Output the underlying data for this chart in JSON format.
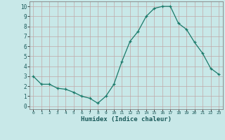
{
  "x": [
    0,
    1,
    2,
    3,
    4,
    5,
    6,
    7,
    8,
    9,
    10,
    11,
    12,
    13,
    14,
    15,
    16,
    17,
    18,
    19,
    20,
    21,
    22,
    23
  ],
  "y": [
    3.0,
    2.2,
    2.2,
    1.8,
    1.7,
    1.4,
    1.0,
    0.8,
    0.3,
    1.0,
    2.2,
    4.5,
    6.5,
    7.5,
    9.0,
    9.8,
    10.0,
    10.0,
    8.3,
    7.7,
    6.4,
    5.3,
    3.8,
    3.2
  ],
  "xlabel": "Humidex (Indice chaleur)",
  "xlim": [
    -0.5,
    23.5
  ],
  "ylim": [
    -0.3,
    10.5
  ],
  "line_color": "#1a7a6a",
  "marker_color": "#1a7a6a",
  "bg_color": "#c8e8e8",
  "grid_color": "#c0a8a8",
  "tick_labels_x": [
    "0",
    "1",
    "2",
    "3",
    "4",
    "5",
    "6",
    "7",
    "8",
    "9",
    "10",
    "11",
    "12",
    "13",
    "14",
    "15",
    "16",
    "17",
    "18",
    "19",
    "20",
    "21",
    "22",
    "23"
  ],
  "tick_labels_y": [
    "0",
    "1",
    "2",
    "3",
    "4",
    "5",
    "6",
    "7",
    "8",
    "9",
    "10"
  ],
  "yticks": [
    0,
    1,
    2,
    3,
    4,
    5,
    6,
    7,
    8,
    9,
    10
  ],
  "xticks": [
    0,
    1,
    2,
    3,
    4,
    5,
    6,
    7,
    8,
    9,
    10,
    11,
    12,
    13,
    14,
    15,
    16,
    17,
    18,
    19,
    20,
    21,
    22,
    23
  ],
  "figsize": [
    3.2,
    2.0
  ],
  "dpi": 100
}
